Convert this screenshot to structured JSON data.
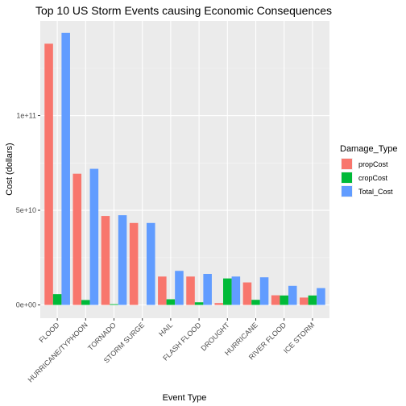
{
  "chart_data": {
    "type": "bar",
    "title": "Top 10 US Storm Events causing Economic Consequences",
    "xlabel": "Event Type",
    "ylabel": "Cost (dollars)",
    "ylim": [
      -7000000000,
      150000000000
    ],
    "yticks": [
      {
        "value": 0,
        "label": "0e+00"
      },
      {
        "value": 50000000000,
        "label": "5e+10"
      },
      {
        "value": 100000000000,
        "label": "1e+11"
      }
    ],
    "categories": [
      "FLOOD",
      "HURRICANE/TYPHOON",
      "TORNADO",
      "STORM SURGE",
      "HAIL",
      "FLASH FLOOD",
      "DROUGHT",
      "HURRICANE",
      "RIVER FLOOD",
      "ICE STORM"
    ],
    "legend": {
      "title": "Damage_Type",
      "position": "right"
    },
    "grid": true,
    "series": [
      {
        "name": "propCost",
        "color": "#F8766D",
        "values": [
          138000000000,
          69300000000,
          47000000000,
          43300000000,
          15000000000,
          15000000000,
          1000000000,
          11900000000,
          5100000000,
          3900000000
        ]
      },
      {
        "name": "cropCost",
        "color": "#00BA38",
        "values": [
          5700000000,
          2600000000,
          400000000,
          0,
          3000000000,
          1400000000,
          14000000000,
          2700000000,
          5000000000,
          5000000000
        ]
      },
      {
        "name": "Total_Cost",
        "color": "#619CFF",
        "values": [
          143700000000,
          71900000000,
          47400000000,
          43300000000,
          18000000000,
          16400000000,
          15000000000,
          14600000000,
          10100000000,
          8900000000
        ]
      }
    ]
  }
}
